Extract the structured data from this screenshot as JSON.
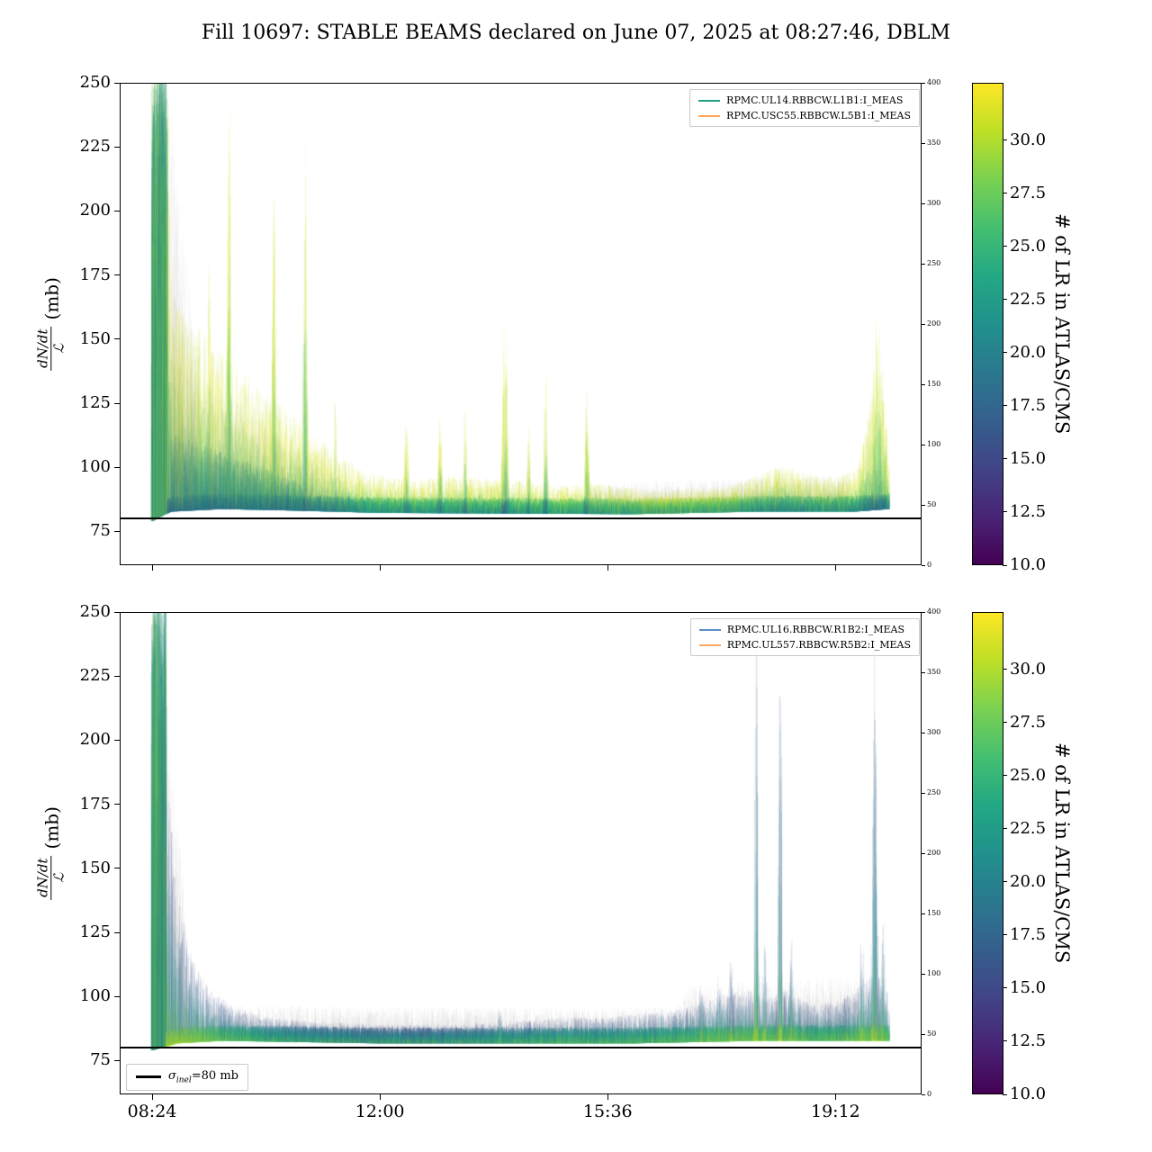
{
  "title": "Fill 10697: STABLE BEAMS declared on June 07, 2025 at 08:27:46, DBLM",
  "ylabel": {
    "numerator": "dN/dt",
    "denominator": "ℒ",
    "unit": "(mb)"
  },
  "x_axis": {
    "tick_labels": [
      "08:24",
      "12:00",
      "15:36",
      "19:12"
    ],
    "tick_hours": [
      8.4,
      12.0,
      15.6,
      19.2
    ],
    "lim_hours": [
      7.888,
      20.56
    ]
  },
  "y_axis": {
    "tick_labels": [
      "250",
      "225",
      "200",
      "175",
      "150",
      "125",
      "100",
      "75"
    ],
    "tick_values": [
      250,
      225,
      200,
      175,
      150,
      125,
      100,
      75
    ],
    "lim": [
      61.8,
      250
    ]
  },
  "right_axis": {
    "tick_labels": [
      "400",
      "350",
      "300",
      "250",
      "200",
      "150",
      "100",
      "50",
      "0"
    ],
    "tick_values": [
      400,
      350,
      300,
      250,
      200,
      150,
      100,
      50,
      0
    ],
    "lim": [
      0,
      400
    ]
  },
  "hline_mb": 80,
  "sigma_legend": {
    "symbol": "σ",
    "subscript": "inel",
    "rest": "=80 mb"
  },
  "colorbar": {
    "label": "# of LR in ATLAS/CMS",
    "tick_labels": [
      "10.0",
      "12.5",
      "15.0",
      "17.5",
      "20.0",
      "22.5",
      "25.0",
      "27.5",
      "30.0"
    ],
    "tick_values": [
      10.0,
      12.5,
      15.0,
      17.5,
      20.0,
      22.5,
      25.0,
      27.5,
      30.0
    ],
    "range": [
      10.0,
      32.7
    ],
    "colormap": "viridis",
    "stops": [
      [
        0.0,
        "#440154"
      ],
      [
        0.1,
        "#482475"
      ],
      [
        0.2,
        "#414487"
      ],
      [
        0.3,
        "#355f8d"
      ],
      [
        0.4,
        "#2a788e"
      ],
      [
        0.5,
        "#21918c"
      ],
      [
        0.6,
        "#22a884"
      ],
      [
        0.7,
        "#44bf70"
      ],
      [
        0.8,
        "#7ad151"
      ],
      [
        0.9,
        "#bddf26"
      ],
      [
        1.0,
        "#fde725"
      ]
    ]
  },
  "chart_data": [
    {
      "type": "density-timeseries",
      "position": "top",
      "legend": [
        {
          "label": "RPMC.UL14.RBBCW.L1B1:I_MEAS",
          "color": "#21a187"
        },
        {
          "label": "RPMC.USC55.RBBCW.L5B1:I_MEAS",
          "color": "#ffa65c"
        }
      ],
      "span_hours": [
        8.4,
        20.05
      ],
      "burst_end_hours": 8.64,
      "seed": 42,
      "decay": 2.2,
      "color_profile": "tip-bright",
      "baseline_mb": [
        [
          8.4,
          79
        ],
        [
          8.7,
          83
        ],
        [
          9.5,
          84
        ],
        [
          10.5,
          83.5
        ],
        [
          12,
          82.5
        ],
        [
          16,
          82
        ],
        [
          18,
          83
        ],
        [
          19.5,
          83
        ],
        [
          20.05,
          84
        ]
      ],
      "envelope_mb": [
        [
          8.4,
          252
        ],
        [
          8.64,
          252
        ],
        [
          8.72,
          172
        ],
        [
          9.0,
          158
        ],
        [
          9.4,
          148
        ],
        [
          9.8,
          138
        ],
        [
          10.2,
          128
        ],
        [
          10.6,
          122
        ],
        [
          11.0,
          112
        ],
        [
          11.4,
          104
        ],
        [
          11.8,
          98
        ],
        [
          12.2,
          96
        ],
        [
          12.6,
          95
        ],
        [
          13.1,
          97
        ],
        [
          13.6,
          96
        ],
        [
          14.2,
          95
        ],
        [
          14.8,
          93
        ],
        [
          15.4,
          94
        ],
        [
          16.0,
          92
        ],
        [
          16.5,
          91
        ],
        [
          17.0,
          92
        ],
        [
          17.5,
          93
        ],
        [
          18.0,
          97
        ],
        [
          18.3,
          101
        ],
        [
          18.6,
          99
        ],
        [
          19.0,
          96
        ],
        [
          19.3,
          97
        ],
        [
          19.55,
          100
        ],
        [
          19.75,
          125
        ],
        [
          19.88,
          160
        ],
        [
          20.0,
          120
        ],
        [
          20.05,
          100
        ]
      ],
      "spikes": [
        [
          9.3,
          185,
          0.04
        ],
        [
          9.62,
          252,
          0.045
        ],
        [
          10.33,
          215,
          0.04
        ],
        [
          10.82,
          252,
          0.035
        ],
        [
          11.3,
          130,
          0.03
        ],
        [
          12.42,
          118,
          0.05
        ],
        [
          12.95,
          122,
          0.04
        ],
        [
          13.35,
          128,
          0.035
        ],
        [
          13.98,
          163,
          0.05
        ],
        [
          14.35,
          120,
          0.03
        ],
        [
          14.62,
          137,
          0.035
        ],
        [
          15.27,
          132,
          0.04
        ],
        [
          19.87,
          172,
          0.05
        ]
      ],
      "haze": [
        {
          "t0": 8.64,
          "t1": 9.1,
          "h0": 170,
          "h1": 60
        },
        {
          "t0": 8.7,
          "t1": 11.5,
          "h0": 60,
          "h1": 10
        },
        {
          "t0": 15.3,
          "t1": 19.4,
          "h0": 12,
          "h1": 14
        }
      ],
      "ridge": {
        "t0": 8.7,
        "t1": 10.8,
        "h0": 30,
        "h1": 10
      }
    },
    {
      "type": "density-timeseries",
      "position": "bottom",
      "legend": [
        {
          "label": "RPMC.UL16.RBBCW.R1B2:I_MEAS",
          "color": "#5b8ec4"
        },
        {
          "label": "RPMC.UL557.RBBCW.R5B2:I_MEAS",
          "color": "#ffa65c"
        }
      ],
      "span_hours": [
        8.4,
        20.05
      ],
      "burst_end_hours": 8.62,
      "seed": 1337,
      "decay": 2.6,
      "color_profile": "tip-dark",
      "baseline_mb": [
        [
          8.4,
          79
        ],
        [
          8.8,
          82
        ],
        [
          9.5,
          83
        ],
        [
          12,
          82
        ],
        [
          16,
          82
        ],
        [
          18,
          83
        ],
        [
          20.05,
          83
        ]
      ],
      "envelope_mb": [
        [
          8.4,
          252
        ],
        [
          8.56,
          252
        ],
        [
          8.66,
          185
        ],
        [
          8.8,
          140
        ],
        [
          9.0,
          118
        ],
        [
          9.3,
          103
        ],
        [
          9.7,
          96
        ],
        [
          10.2,
          92
        ],
        [
          11,
          90
        ],
        [
          12,
          89
        ],
        [
          13,
          89
        ],
        [
          13.9,
          90
        ],
        [
          14.5,
          91
        ],
        [
          15,
          92
        ],
        [
          15.5,
          92
        ],
        [
          16,
          93
        ],
        [
          16.5,
          94
        ],
        [
          17.0,
          97
        ],
        [
          17.4,
          101
        ],
        [
          17.8,
          103
        ],
        [
          18.1,
          100
        ],
        [
          18.5,
          103
        ],
        [
          18.8,
          97
        ],
        [
          19.2,
          98
        ],
        [
          19.5,
          102
        ],
        [
          19.8,
          110
        ],
        [
          20.0,
          105
        ],
        [
          20.05,
          95
        ]
      ],
      "spikes": [
        [
          13.9,
          97,
          0.04
        ],
        [
          16.45,
          99,
          0.04
        ],
        [
          17.08,
          107,
          0.05
        ],
        [
          17.36,
          112,
          0.035
        ],
        [
          17.55,
          118,
          0.03
        ],
        [
          17.95,
          252,
          0.03
        ],
        [
          18.08,
          130,
          0.03
        ],
        [
          18.33,
          252,
          0.028
        ],
        [
          18.5,
          128,
          0.03
        ],
        [
          19.62,
          125,
          0.05
        ],
        [
          19.82,
          252,
          0.04
        ],
        [
          19.95,
          140,
          0.03
        ]
      ],
      "haze": [
        {
          "t0": 8.56,
          "t1": 9.0,
          "h0": 170,
          "h1": 30
        },
        {
          "t0": 9.0,
          "t1": 16.8,
          "h0": 14,
          "h1": 14
        },
        {
          "t0": 16.8,
          "t1": 20.0,
          "h0": 22,
          "h1": 25
        }
      ]
    }
  ]
}
